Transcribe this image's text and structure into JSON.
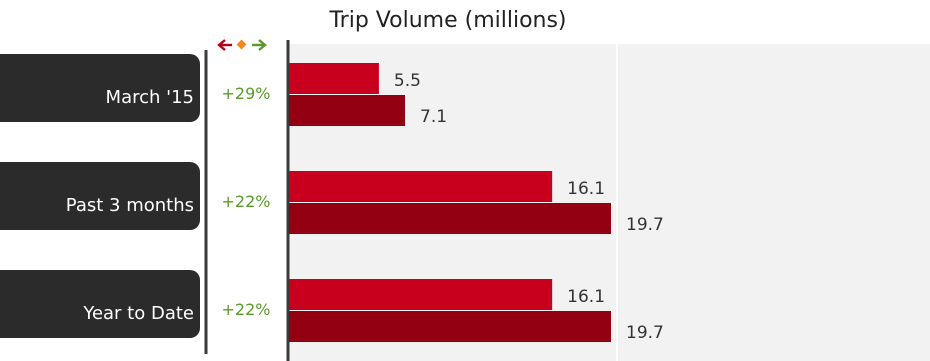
{
  "colors": {
    "series_previous": "#c8001e",
    "series_current": "#930012",
    "change_positive": "#5a9a2a",
    "change_neutral": "#f08a1c",
    "change_negative": "#b8001a",
    "plot_background": "#f2f2f2",
    "label_background": "#2b2b2b"
  },
  "legend_icons": [
    "left-arrow-icon",
    "diamond-icon",
    "right-arrow-icon"
  ],
  "chart_data": {
    "type": "bar",
    "orientation": "horizontal",
    "title": "Trip Volume (millions)",
    "xlabel": "",
    "ylabel": "",
    "xlim": [
      0,
      30
    ],
    "grid": false,
    "categories": [
      "March '15",
      "Past 3 months",
      "Year to Date"
    ],
    "changes": [
      "+29%",
      "+22%",
      "+22%"
    ],
    "series": [
      {
        "values": [
          5.5,
          16.1,
          16.1
        ]
      },
      {
        "values": [
          7.1,
          19.7,
          19.7
        ]
      }
    ]
  }
}
